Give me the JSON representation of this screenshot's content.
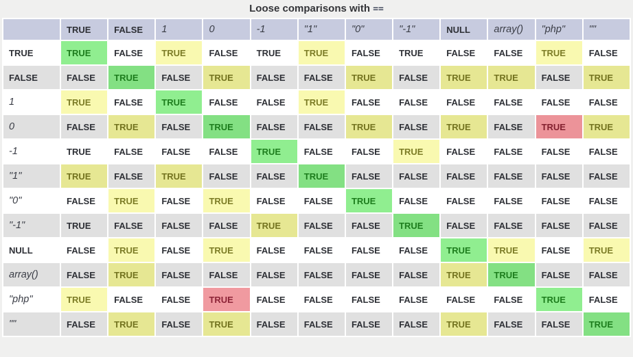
{
  "title": {
    "text": "Loose comparisons with",
    "operator": "=="
  },
  "colors": {
    "page_background": "#f0f0ef",
    "header_background": "#c7cbdf",
    "row_white": "#ffffff",
    "row_gray": "#e0e0e0",
    "highlight_green_bg": "#90ee90",
    "highlight_green_text": "#1d7d1d",
    "highlight_yellow_bg": "#f9f9b0",
    "highlight_yellow_text": "#7c7c26",
    "highlight_red_bg": "#ec9399",
    "highlight_red_text": "#8d2437",
    "cell_text": "#2e3036"
  },
  "chart_data": {
    "type": "table",
    "title": "Loose comparisons with ==",
    "legend_position": "none",
    "columns": [
      {
        "label": "TRUE",
        "style": "keyword"
      },
      {
        "label": "FALSE",
        "style": "keyword"
      },
      {
        "label": "1",
        "style": "code"
      },
      {
        "label": "0",
        "style": "code"
      },
      {
        "label": "-1",
        "style": "code"
      },
      {
        "label": "\"1\"",
        "style": "code"
      },
      {
        "label": "\"0\"",
        "style": "code"
      },
      {
        "label": "\"-1\"",
        "style": "code"
      },
      {
        "label": "NULL",
        "style": "keyword"
      },
      {
        "label": "array()",
        "style": "code"
      },
      {
        "label": "\"php\"",
        "style": "code"
      },
      {
        "label": "\"\"",
        "style": "code"
      }
    ],
    "rows": [
      {
        "header": "TRUE",
        "header_style": "keyword",
        "values": [
          "TRUE",
          "FALSE",
          "TRUE",
          "FALSE",
          "TRUE",
          "TRUE",
          "FALSE",
          "TRUE",
          "FALSE",
          "FALSE",
          "TRUE",
          "FALSE"
        ],
        "highlights": [
          "green",
          "none",
          "yellow",
          "none",
          "none",
          "yellow",
          "none",
          "none",
          "none",
          "none",
          "yellow",
          "none"
        ]
      },
      {
        "header": "FALSE",
        "header_style": "keyword",
        "values": [
          "FALSE",
          "TRUE",
          "FALSE",
          "TRUE",
          "FALSE",
          "FALSE",
          "TRUE",
          "FALSE",
          "TRUE",
          "TRUE",
          "FALSE",
          "TRUE"
        ],
        "highlights": [
          "none",
          "green",
          "none",
          "yellow",
          "none",
          "none",
          "yellow",
          "none",
          "yellow",
          "yellow",
          "none",
          "yellow"
        ]
      },
      {
        "header": "1",
        "header_style": "code",
        "values": [
          "TRUE",
          "FALSE",
          "TRUE",
          "FALSE",
          "FALSE",
          "TRUE",
          "FALSE",
          "FALSE",
          "FALSE",
          "FALSE",
          "FALSE",
          "FALSE"
        ],
        "highlights": [
          "yellow",
          "none",
          "green",
          "none",
          "none",
          "yellow",
          "none",
          "none",
          "none",
          "none",
          "none",
          "none"
        ]
      },
      {
        "header": "0",
        "header_style": "code",
        "values": [
          "FALSE",
          "TRUE",
          "FALSE",
          "TRUE",
          "FALSE",
          "FALSE",
          "TRUE",
          "FALSE",
          "TRUE",
          "FALSE",
          "TRUE",
          "TRUE"
        ],
        "highlights": [
          "none",
          "yellow",
          "none",
          "green",
          "none",
          "none",
          "yellow",
          "none",
          "yellow",
          "none",
          "red",
          "yellow"
        ]
      },
      {
        "header": "-1",
        "header_style": "code",
        "values": [
          "TRUE",
          "FALSE",
          "FALSE",
          "FALSE",
          "TRUE",
          "FALSE",
          "FALSE",
          "TRUE",
          "FALSE",
          "FALSE",
          "FALSE",
          "FALSE"
        ],
        "highlights": [
          "none",
          "none",
          "none",
          "none",
          "green",
          "none",
          "none",
          "yellow",
          "none",
          "none",
          "none",
          "none"
        ]
      },
      {
        "header": "\"1\"",
        "header_style": "code",
        "values": [
          "TRUE",
          "FALSE",
          "TRUE",
          "FALSE",
          "FALSE",
          "TRUE",
          "FALSE",
          "FALSE",
          "FALSE",
          "FALSE",
          "FALSE",
          "FALSE"
        ],
        "highlights": [
          "yellow",
          "none",
          "yellow",
          "none",
          "none",
          "green",
          "none",
          "none",
          "none",
          "none",
          "none",
          "none"
        ]
      },
      {
        "header": "\"0\"",
        "header_style": "code",
        "values": [
          "FALSE",
          "TRUE",
          "FALSE",
          "TRUE",
          "FALSE",
          "FALSE",
          "TRUE",
          "FALSE",
          "FALSE",
          "FALSE",
          "FALSE",
          "FALSE"
        ],
        "highlights": [
          "none",
          "yellow",
          "none",
          "yellow",
          "none",
          "none",
          "green",
          "none",
          "none",
          "none",
          "none",
          "none"
        ]
      },
      {
        "header": "\"-1\"",
        "header_style": "code",
        "values": [
          "TRUE",
          "FALSE",
          "FALSE",
          "FALSE",
          "TRUE",
          "FALSE",
          "FALSE",
          "TRUE",
          "FALSE",
          "FALSE",
          "FALSE",
          "FALSE"
        ],
        "highlights": [
          "none",
          "none",
          "none",
          "none",
          "yellow",
          "none",
          "none",
          "green",
          "none",
          "none",
          "none",
          "none"
        ]
      },
      {
        "header": "NULL",
        "header_style": "keyword",
        "values": [
          "FALSE",
          "TRUE",
          "FALSE",
          "TRUE",
          "FALSE",
          "FALSE",
          "FALSE",
          "FALSE",
          "TRUE",
          "TRUE",
          "FALSE",
          "TRUE"
        ],
        "highlights": [
          "none",
          "yellow",
          "none",
          "yellow",
          "none",
          "none",
          "none",
          "none",
          "green",
          "yellow",
          "none",
          "yellow"
        ]
      },
      {
        "header": "array()",
        "header_style": "code",
        "values": [
          "FALSE",
          "TRUE",
          "FALSE",
          "FALSE",
          "FALSE",
          "FALSE",
          "FALSE",
          "FALSE",
          "TRUE",
          "TRUE",
          "FALSE",
          "FALSE"
        ],
        "highlights": [
          "none",
          "yellow",
          "none",
          "none",
          "none",
          "none",
          "none",
          "none",
          "yellow",
          "green",
          "none",
          "none"
        ]
      },
      {
        "header": "\"php\"",
        "header_style": "code",
        "values": [
          "TRUE",
          "FALSE",
          "FALSE",
          "TRUE",
          "FALSE",
          "FALSE",
          "FALSE",
          "FALSE",
          "FALSE",
          "FALSE",
          "TRUE",
          "FALSE"
        ],
        "highlights": [
          "yellow",
          "none",
          "none",
          "red",
          "none",
          "none",
          "none",
          "none",
          "none",
          "none",
          "green",
          "none"
        ]
      },
      {
        "header": "\"\"",
        "header_style": "code",
        "values": [
          "FALSE",
          "TRUE",
          "FALSE",
          "TRUE",
          "FALSE",
          "FALSE",
          "FALSE",
          "FALSE",
          "TRUE",
          "FALSE",
          "FALSE",
          "TRUE"
        ],
        "highlights": [
          "none",
          "yellow",
          "none",
          "yellow",
          "none",
          "none",
          "none",
          "none",
          "yellow",
          "none",
          "none",
          "green"
        ]
      }
    ]
  }
}
